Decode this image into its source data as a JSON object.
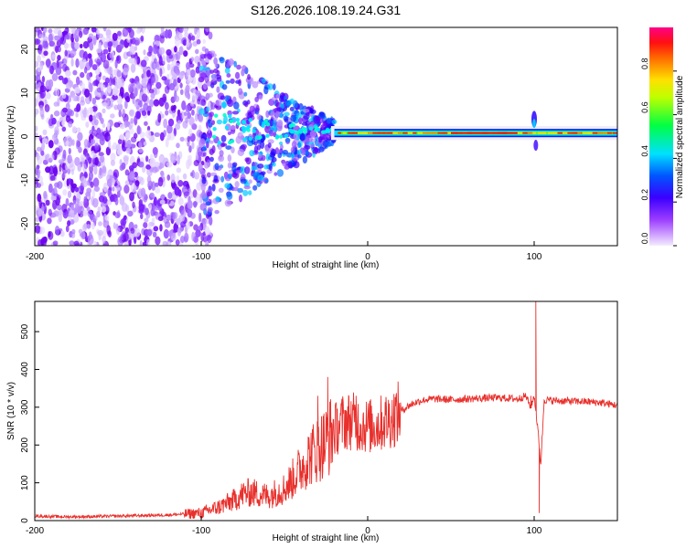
{
  "title": "S126.2026.108.19.24.G31",
  "colors": {
    "snr_line": "#e8302c",
    "axis": "#000000",
    "background": "#ffffff"
  },
  "chart_data": [
    {
      "type": "heatmap",
      "name": "spectrogram",
      "xlabel": "Height of straight line (km)",
      "ylabel": "Frequency (Hz)",
      "xlim": [
        -200,
        150
      ],
      "ylim": [
        -25,
        25
      ],
      "xticks": [
        -200,
        -100,
        0,
        100
      ],
      "yticks": [
        -20,
        -10,
        0,
        10,
        20
      ],
      "colorbar": {
        "label": "Normalized spectral amplitude",
        "range": [
          0,
          1
        ],
        "ticks": [
          "0.0",
          "0.2",
          "0.4",
          "0.6",
          "0.8"
        ],
        "colormap": [
          "#f4ecff",
          "#7b00ff",
          "#0000ff",
          "#00e5ff",
          "#00ff00",
          "#ffff00",
          "#ff8800",
          "#ff0000",
          "#ff0099"
        ]
      },
      "features": {
        "noise_region_km": [
          -200,
          -100
        ],
        "transition_region_km": [
          -100,
          -20
        ],
        "tone_region_km": [
          -20,
          150
        ],
        "tone_frequency_hz": 0.8,
        "disturbance_km": 100
      }
    },
    {
      "type": "line",
      "name": "snr",
      "xlabel": "Height of straight line (km)",
      "ylabel": "SNR (10 * v/v)",
      "xlim": [
        -200,
        150
      ],
      "ylim": [
        0,
        580
      ],
      "xticks": [
        -200,
        -100,
        0,
        100
      ],
      "yticks": [
        0,
        100,
        200,
        300,
        400,
        500
      ],
      "series": [
        {
          "name": "SNR",
          "x": [
            -200,
            -180,
            -160,
            -140,
            -120,
            -100,
            -90,
            -80,
            -75,
            -70,
            -65,
            -60,
            -55,
            -50,
            -45,
            -40,
            -35,
            -30,
            -25,
            -20,
            -15,
            -10,
            -5,
            0,
            5,
            10,
            15,
            20,
            25,
            30,
            35,
            40,
            50,
            60,
            70,
            80,
            90,
            95,
            98,
            100,
            102,
            104,
            106,
            110,
            120,
            130,
            140,
            150
          ],
          "values": [
            12,
            10,
            11,
            13,
            15,
            20,
            35,
            55,
            70,
            75,
            70,
            65,
            75,
            85,
            110,
            140,
            170,
            190,
            210,
            240,
            260,
            265,
            255,
            250,
            250,
            262,
            272,
            290,
            305,
            315,
            320,
            322,
            320,
            322,
            324,
            325,
            322,
            330,
            300,
            330,
            250,
            150,
            320,
            318,
            316,
            315,
            312,
            305
          ]
        }
      ],
      "spikes": [
        {
          "x": -30,
          "value": 330
        },
        {
          "x": -24,
          "value": 380
        },
        {
          "x": -7,
          "value": 330
        },
        {
          "x": 98,
          "value": 330
        },
        {
          "x": 101,
          "value": 580
        },
        {
          "x": 103,
          "value": 20
        }
      ]
    }
  ]
}
